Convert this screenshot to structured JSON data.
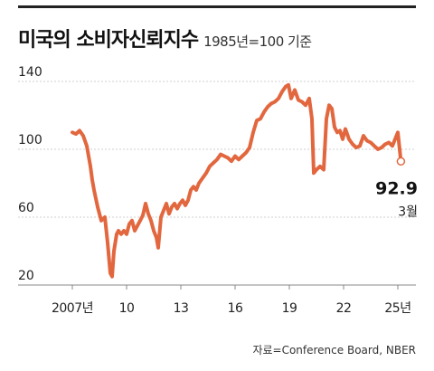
{
  "header": {
    "title": "미국의 소비자신뢰지수",
    "subtitle": "1985년=100 기준"
  },
  "source": "자료=Conference Board, NBER",
  "colors": {
    "line": "#e2673f",
    "text": "#222222",
    "grid": "#cfcfcf",
    "axis": "#888888"
  },
  "chart_data": {
    "type": "line",
    "title": "미국의 소비자신뢰지수",
    "subtitle": "1985년=100 기준",
    "ylim": [
      20,
      140
    ],
    "xlim": [
      2007,
      2025.4
    ],
    "y_ticks": [
      140,
      100,
      60,
      20
    ],
    "x_ticks": [
      {
        "value": 2007,
        "label": "2007년"
      },
      {
        "value": 2010,
        "label": "10"
      },
      {
        "value": 2013,
        "label": "13"
      },
      {
        "value": 2016,
        "label": "16"
      },
      {
        "value": 2019,
        "label": "19"
      },
      {
        "value": 2022,
        "label": "22"
      },
      {
        "value": 2025,
        "label": "25년"
      }
    ],
    "grid": "horizontal dashed",
    "series": [
      {
        "x": [
          2007.0,
          2007.2,
          2007.4,
          2007.6,
          2007.8,
          2008.0,
          2008.1,
          2008.2,
          2008.4,
          2008.6,
          2008.8,
          2008.95,
          2009.1,
          2009.2,
          2009.3,
          2009.45,
          2009.55,
          2009.7,
          2009.85,
          2010.0,
          2010.15,
          2010.3,
          2010.45,
          2010.6,
          2010.75,
          2010.9,
          2011.05,
          2011.2,
          2011.35,
          2011.5,
          2011.65,
          2011.75,
          2011.9,
          2012.05,
          2012.2,
          2012.35,
          2012.5,
          2012.65,
          2012.8,
          2012.95,
          2013.1,
          2013.25,
          2013.4,
          2013.55,
          2013.7,
          2013.85,
          2014.0,
          2014.2,
          2014.4,
          2014.6,
          2014.8,
          2015.0,
          2015.2,
          2015.4,
          2015.6,
          2015.8,
          2016.0,
          2016.2,
          2016.4,
          2016.6,
          2016.8,
          2017.0,
          2017.2,
          2017.4,
          2017.6,
          2017.8,
          2018.0,
          2018.2,
          2018.4,
          2018.6,
          2018.8,
          2018.95,
          2019.1,
          2019.3,
          2019.5,
          2019.7,
          2019.9,
          2020.1,
          2020.25,
          2020.35,
          2020.5,
          2020.7,
          2020.9,
          2021.05,
          2021.2,
          2021.35,
          2021.5,
          2021.65,
          2021.8,
          2021.95,
          2022.1,
          2022.3,
          2022.5,
          2022.7,
          2022.9,
          2023.1,
          2023.3,
          2023.5,
          2023.7,
          2023.9,
          2024.1,
          2024.3,
          2024.5,
          2024.7,
          2024.85,
          2025.0,
          2025.1,
          2025.17
        ],
        "y": [
          110,
          109,
          111,
          108,
          102,
          90,
          82,
          76,
          66,
          58,
          60,
          45,
          27,
          25,
          40,
          50,
          52,
          50,
          52,
          50,
          56,
          58,
          52,
          55,
          58,
          61,
          68,
          62,
          58,
          52,
          48,
          42,
          60,
          64,
          68,
          62,
          66,
          68,
          65,
          68,
          70,
          67,
          70,
          76,
          78,
          76,
          80,
          83,
          86,
          90,
          92,
          94,
          97,
          96,
          95,
          93,
          96,
          94,
          96,
          98,
          101,
          110,
          117,
          118,
          122,
          125,
          127,
          128,
          130,
          134,
          137,
          138,
          130,
          135,
          129,
          128,
          126,
          130,
          118,
          86,
          88,
          90,
          88,
          118,
          126,
          124,
          113,
          110,
          111,
          106,
          112,
          106,
          103,
          101,
          102,
          108,
          105,
          104,
          102,
          100,
          101,
          103,
          104,
          102,
          106,
          110,
          100,
          92.9
        ]
      }
    ],
    "annotation": {
      "value": "92.9",
      "label": "3월"
    }
  }
}
